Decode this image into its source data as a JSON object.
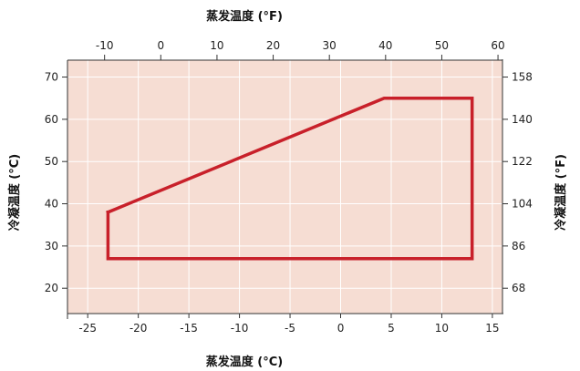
{
  "chart_data": {
    "type": "line",
    "title": "",
    "colors": {
      "plot_background": "#f6ddd3",
      "grid": "#ffffff",
      "axis": "#333333",
      "envelope": "#c8202a"
    },
    "x_bottom": {
      "label": "蒸发温度 (°C)",
      "range": [
        -27,
        16
      ],
      "ticks": [
        -25,
        -20,
        -15,
        -10,
        -5,
        0,
        5,
        10,
        15
      ]
    },
    "x_top": {
      "label": "蒸发温度 (°F)",
      "range": [
        -16.6,
        60.8
      ],
      "ticks": [
        -10,
        0,
        10,
        20,
        30,
        40,
        50,
        60
      ]
    },
    "y_left": {
      "label": "冷凝温度 (°C)",
      "range": [
        14,
        74
      ],
      "ticks": [
        20,
        30,
        40,
        50,
        60,
        70
      ]
    },
    "y_right": {
      "label": "冷凝温度 (°F)",
      "range": [
        57.2,
        165.2
      ],
      "ticks": [
        68,
        86,
        104,
        122,
        140,
        158
      ]
    },
    "grid": true,
    "series": [
      {
        "x": [
          -23,
          4.3,
          13,
          13,
          -23,
          -23
        ],
        "y": [
          38,
          65,
          65,
          27,
          27,
          38
        ]
      }
    ]
  }
}
